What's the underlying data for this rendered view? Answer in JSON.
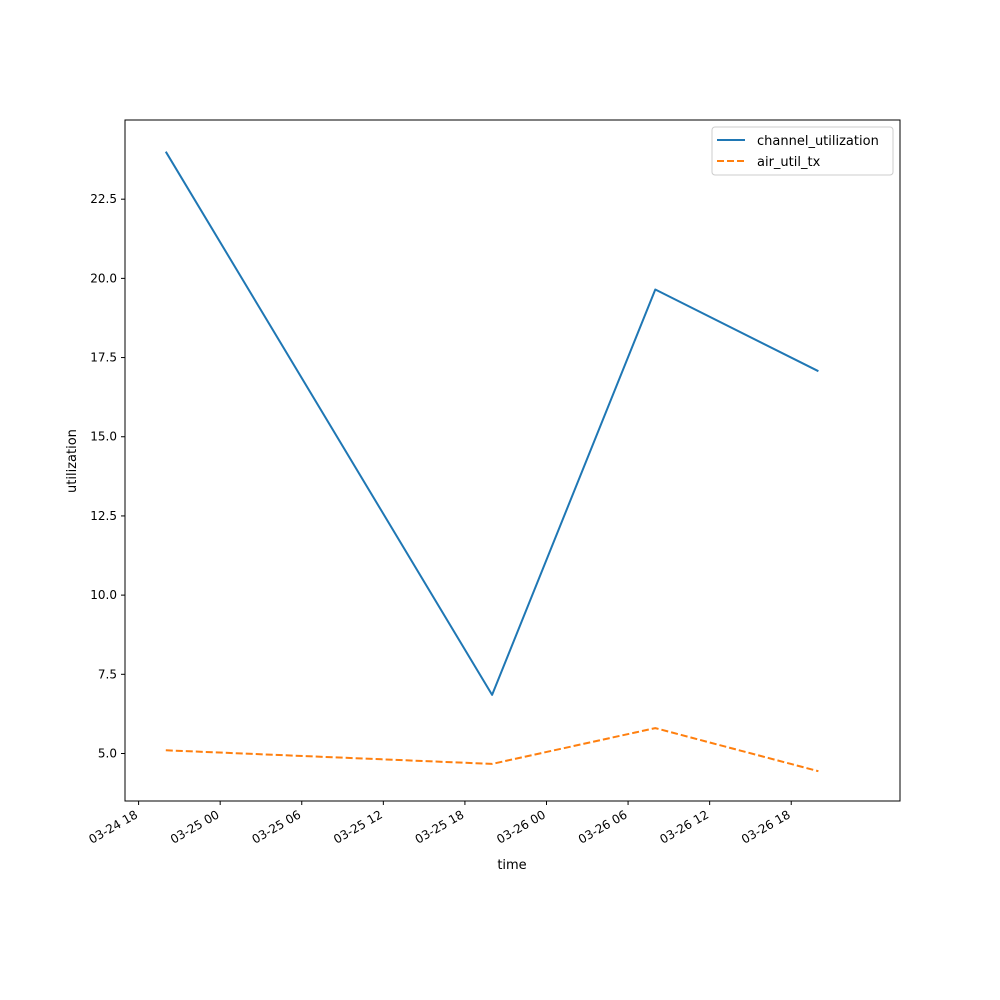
{
  "chart_data": {
    "type": "line",
    "title": "",
    "xlabel": "time",
    "ylabel": "utilization",
    "x": [
      "03-24 20:00",
      "03-25 20:00",
      "03-26 08:00",
      "03-26 20:00"
    ],
    "series": [
      {
        "name": "channel_utilization",
        "values": [
          24.0,
          6.85,
          19.65,
          17.07
        ],
        "color": "#1f77b4",
        "style": "solid"
      },
      {
        "name": "air_util_tx",
        "values": [
          5.1,
          4.67,
          5.8,
          4.44
        ],
        "color": "#ff7f0e",
        "style": "dashed"
      }
    ],
    "xlim": [
      "03-24 17:00",
      "03-27 02:00"
    ],
    "ylim": [
      3.5,
      25.0
    ],
    "x_ticks": [
      {
        "at": "03-24 18:00",
        "label": "03-24 18"
      },
      {
        "at": "03-25 00:00",
        "label": "03-25 00"
      },
      {
        "at": "03-25 06:00",
        "label": "03-25 06"
      },
      {
        "at": "03-25 12:00",
        "label": "03-25 12"
      },
      {
        "at": "03-25 18:00",
        "label": "03-25 18"
      },
      {
        "at": "03-26 00:00",
        "label": "03-26 00"
      },
      {
        "at": "03-26 06:00",
        "label": "03-26 06"
      },
      {
        "at": "03-26 12:00",
        "label": "03-26 12"
      },
      {
        "at": "03-26 18:00",
        "label": "03-26 18"
      }
    ],
    "y_ticks": [
      5.0,
      7.5,
      10.0,
      12.5,
      15.0,
      17.5,
      20.0,
      22.5
    ],
    "grid": false,
    "legend_position": "top-right"
  }
}
